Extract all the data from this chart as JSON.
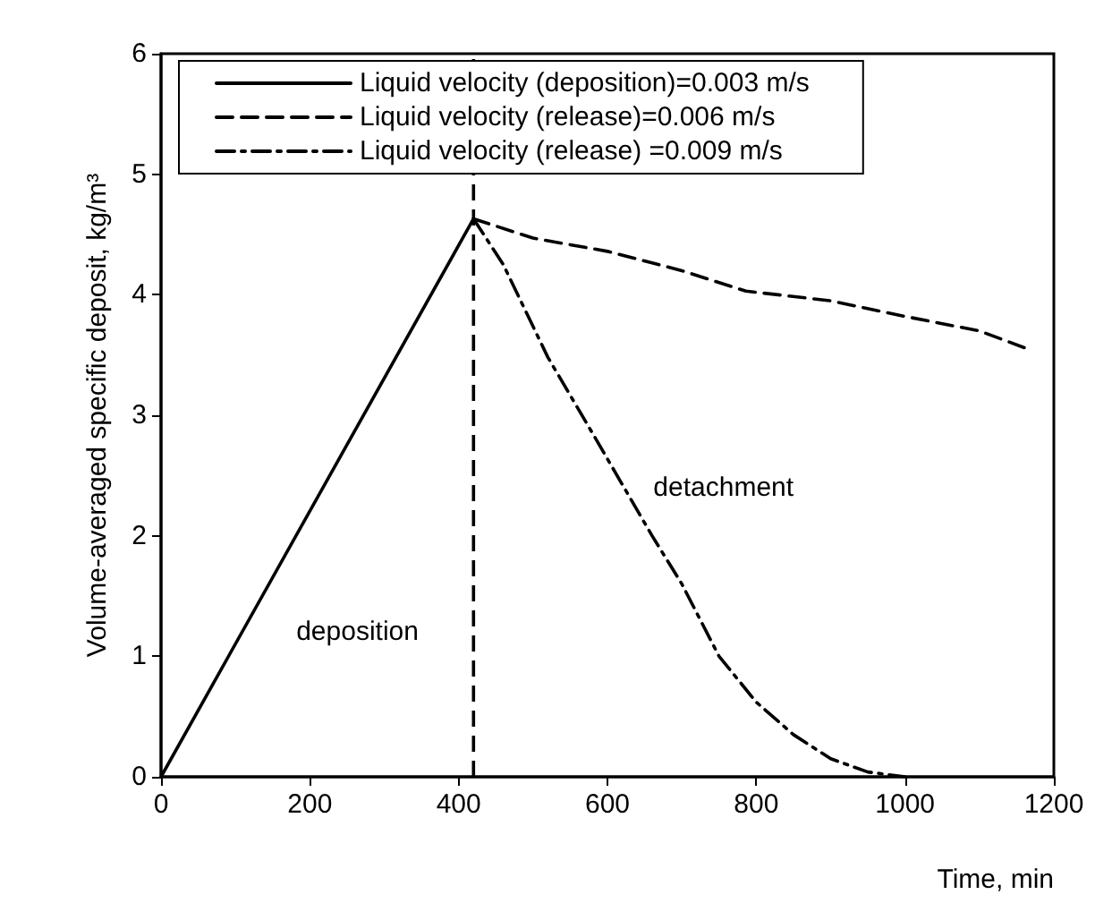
{
  "chart_data": {
    "type": "line",
    "xlabel": "Time, min",
    "ylabel": "Volume-averaged specific deposit, kg/m³",
    "xlim": [
      0,
      1200
    ],
    "xticks": [
      0,
      200,
      400,
      600,
      800,
      {
        "value": 1000,
        "label": "1000"
      },
      {
        "value": 1200,
        "label": "1200"
      }
    ],
    "ylim": [
      0,
      6
    ],
    "yticks": [
      0,
      1,
      2,
      3,
      4,
      5,
      6
    ],
    "grid": false,
    "legend": "top",
    "marker": "none",
    "series": [
      {
        "name": "Liquid velocity (deposition)=0.003 m/s",
        "color": "#000000",
        "line_style": "solid",
        "x": [
          0,
          420
        ],
        "values": [
          0,
          4.63
        ]
      },
      {
        "name": "Liquid velocity (release)=0.006 m/s",
        "color": "#000000",
        "line_style": "dashed",
        "x": [
          420,
          500,
          600,
          700,
          786,
          900,
          1000,
          1100,
          1165
        ],
        "values": [
          4.63,
          4.47,
          4.36,
          4.2,
          4.03,
          3.95,
          3.82,
          3.7,
          3.55
        ]
      },
      {
        "name": "Liquid velocity (release) =0.009 m/s",
        "color": "#000000",
        "line_style": "dashdot",
        "x": [
          420,
          460,
          520,
          580,
          660,
          700,
          750,
          800,
          850,
          900,
          950,
          1000
        ],
        "values": [
          4.63,
          4.25,
          3.48,
          2.85,
          2.0,
          1.6,
          1.0,
          0.62,
          0.35,
          0.15,
          0.04,
          0
        ]
      }
    ],
    "ref_lines": [
      {
        "axis": "x",
        "value": 420,
        "color": "#000000",
        "line_style": "dashed"
      }
    ],
    "annotations": [
      "deposition",
      "detachment"
    ]
  }
}
